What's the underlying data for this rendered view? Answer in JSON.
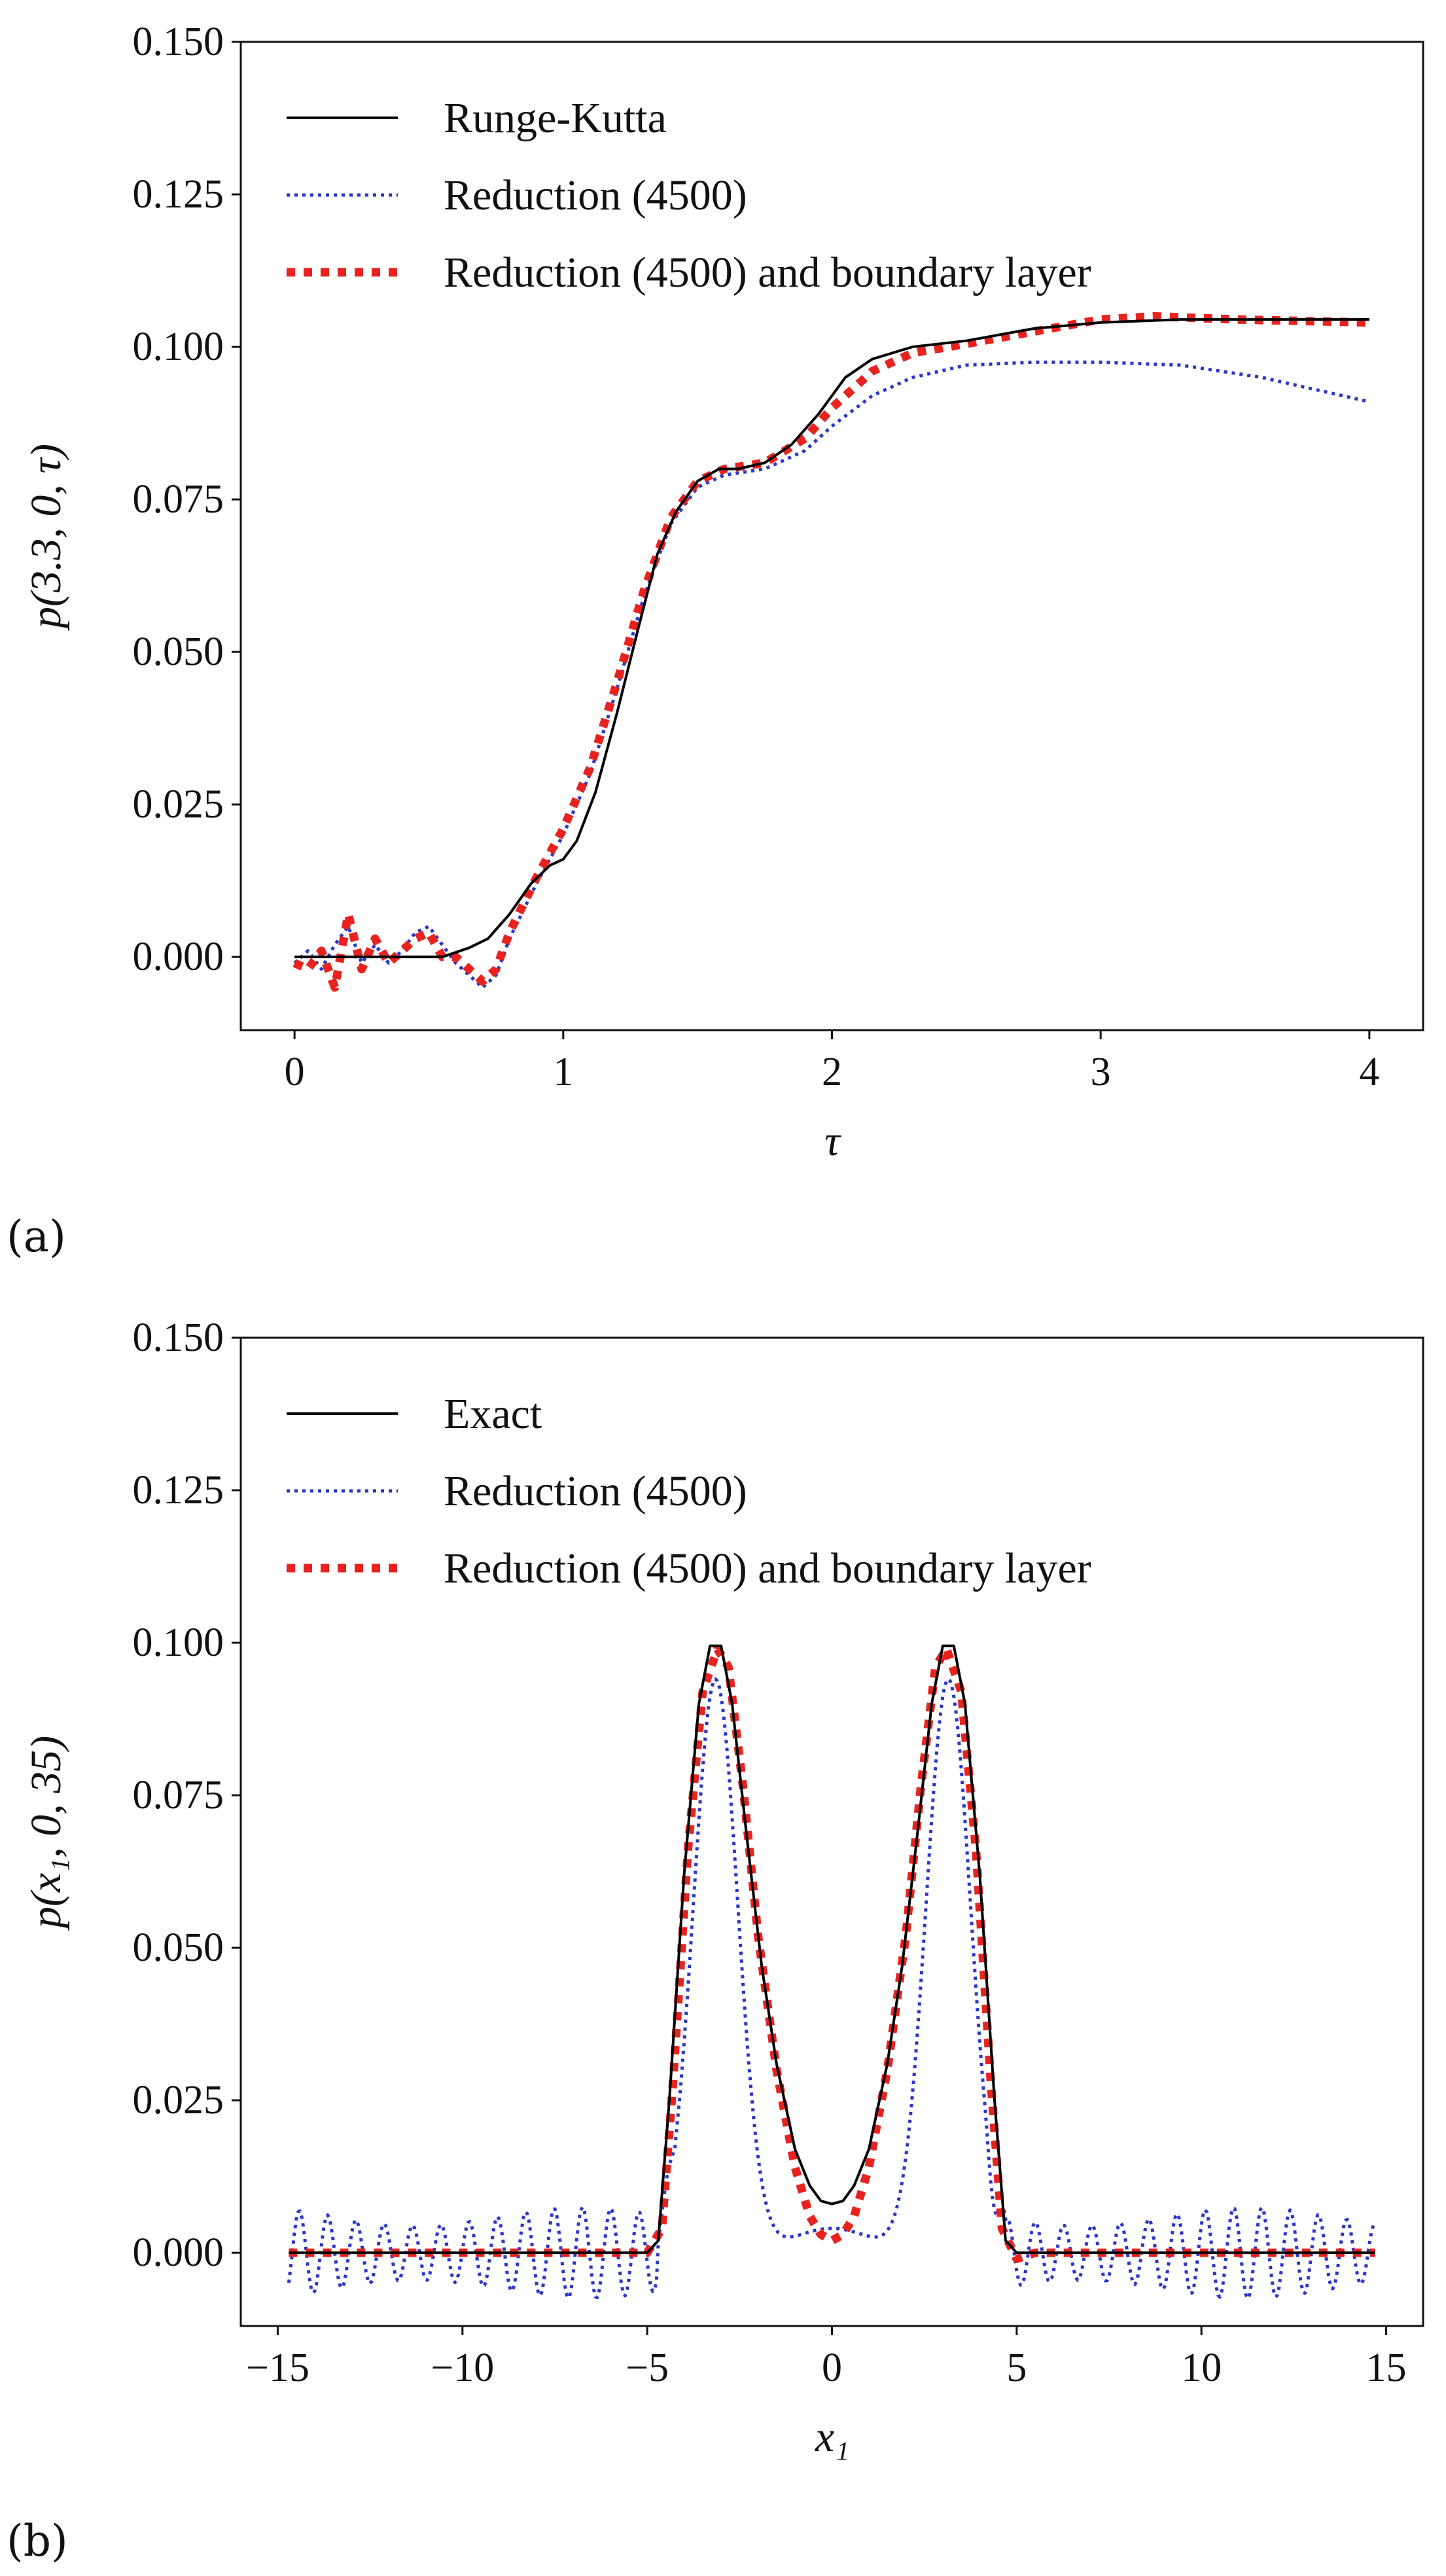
{
  "chart_data": [
    {
      "type": "line",
      "panel_label": "(a)",
      "ylabel": "p(3.3, 0, τ)",
      "xlabel": "τ",
      "xlim": [
        -0.2,
        4.2
      ],
      "ylim": [
        -0.012,
        0.15
      ],
      "xticks": [
        0,
        1,
        2,
        3,
        4
      ],
      "yticks": [
        0.0,
        0.025,
        0.05,
        0.075,
        0.1,
        0.125,
        0.15
      ],
      "xtick_labels": [
        "0",
        "1",
        "2",
        "3",
        "4"
      ],
      "ytick_labels": [
        "0.000",
        "0.025",
        "0.050",
        "0.075",
        "0.100",
        "0.125",
        "0.150"
      ],
      "legend_position": "top-left",
      "series": [
        {
          "name": "Runge-Kutta",
          "color": "#000000",
          "style": "solid",
          "points": [
            [
              0,
              0
            ],
            [
              0.3,
              0
            ],
            [
              0.55,
              0
            ],
            [
              0.65,
              0.0015
            ],
            [
              0.72,
              0.003
            ],
            [
              0.8,
              0.007
            ],
            [
              0.88,
              0.012
            ],
            [
              0.95,
              0.015
            ],
            [
              1.0,
              0.016
            ],
            [
              1.05,
              0.019
            ],
            [
              1.12,
              0.027
            ],
            [
              1.2,
              0.04
            ],
            [
              1.28,
              0.054
            ],
            [
              1.35,
              0.066
            ],
            [
              1.42,
              0.073
            ],
            [
              1.5,
              0.078
            ],
            [
              1.58,
              0.08
            ],
            [
              1.65,
              0.08
            ],
            [
              1.75,
              0.081
            ],
            [
              1.85,
              0.084
            ],
            [
              1.95,
              0.089
            ],
            [
              2.05,
              0.095
            ],
            [
              2.15,
              0.098
            ],
            [
              2.3,
              0.1
            ],
            [
              2.5,
              0.101
            ],
            [
              2.75,
              0.103
            ],
            [
              3.0,
              0.104
            ],
            [
              3.3,
              0.1045
            ],
            [
              3.6,
              0.1045
            ],
            [
              4.0,
              0.1045
            ]
          ]
        },
        {
          "name": "Reduction (4500)",
          "color": "#2b35c8",
          "style": "dotted",
          "points": [
            [
              0,
              -0.001
            ],
            [
              0.05,
              0.001
            ],
            [
              0.1,
              -0.002
            ],
            [
              0.15,
              0.002
            ],
            [
              0.2,
              0.005
            ],
            [
              0.25,
              -0.001
            ],
            [
              0.3,
              0.002
            ],
            [
              0.35,
              -0.001
            ],
            [
              0.4,
              0.001
            ],
            [
              0.45,
              0.004
            ],
            [
              0.5,
              0.005
            ],
            [
              0.55,
              0.002
            ],
            [
              0.6,
              -0.001
            ],
            [
              0.65,
              -0.003
            ],
            [
              0.7,
              -0.005
            ],
            [
              0.75,
              -0.003
            ],
            [
              0.8,
              0.003
            ],
            [
              0.9,
              0.012
            ],
            [
              1.0,
              0.02
            ],
            [
              1.1,
              0.03
            ],
            [
              1.2,
              0.044
            ],
            [
              1.3,
              0.059
            ],
            [
              1.4,
              0.071
            ],
            [
              1.5,
              0.077
            ],
            [
              1.6,
              0.079
            ],
            [
              1.75,
              0.08
            ],
            [
              1.9,
              0.083
            ],
            [
              2.0,
              0.087
            ],
            [
              2.15,
              0.092
            ],
            [
              2.3,
              0.095
            ],
            [
              2.5,
              0.097
            ],
            [
              2.75,
              0.0975
            ],
            [
              3.0,
              0.0975
            ],
            [
              3.3,
              0.097
            ],
            [
              3.6,
              0.095
            ],
            [
              3.8,
              0.093
            ],
            [
              4.0,
              0.091
            ]
          ]
        },
        {
          "name": "Reduction (4500) and boundary layer",
          "color": "#e8231f",
          "style": "dotted-thick",
          "points": [
            [
              0,
              -0.001
            ],
            [
              0.05,
              -0.002
            ],
            [
              0.1,
              0.001
            ],
            [
              0.15,
              -0.005
            ],
            [
              0.2,
              0.007
            ],
            [
              0.25,
              -0.002
            ],
            [
              0.3,
              0.003
            ],
            [
              0.35,
              -0.001
            ],
            [
              0.4,
              0.001
            ],
            [
              0.45,
              0.003
            ],
            [
              0.5,
              0.004
            ],
            [
              0.55,
              0.0
            ],
            [
              0.6,
              0.0
            ],
            [
              0.65,
              -0.002
            ],
            [
              0.7,
              -0.004
            ],
            [
              0.75,
              -0.002
            ],
            [
              0.8,
              0.004
            ],
            [
              0.9,
              0.013
            ],
            [
              1.0,
              0.021
            ],
            [
              1.1,
              0.031
            ],
            [
              1.2,
              0.045
            ],
            [
              1.3,
              0.06
            ],
            [
              1.4,
              0.072
            ],
            [
              1.5,
              0.078
            ],
            [
              1.6,
              0.08
            ],
            [
              1.75,
              0.081
            ],
            [
              1.9,
              0.085
            ],
            [
              2.0,
              0.09
            ],
            [
              2.15,
              0.096
            ],
            [
              2.3,
              0.099
            ],
            [
              2.5,
              0.1005
            ],
            [
              2.75,
              0.1025
            ],
            [
              3.0,
              0.1045
            ],
            [
              3.2,
              0.105
            ],
            [
              3.5,
              0.1045
            ],
            [
              4.0,
              0.104
            ]
          ]
        }
      ]
    },
    {
      "type": "line",
      "panel_label": "(b)",
      "ylabel": "p(x₁, 0, 35)",
      "xlabel": "x₁",
      "xlim": [
        -16.0,
        16.0
      ],
      "ylim": [
        -0.012,
        0.15
      ],
      "xticks": [
        -15,
        -10,
        -5,
        0,
        5,
        10,
        15
      ],
      "yticks": [
        0.0,
        0.025,
        0.05,
        0.075,
        0.1,
        0.125,
        0.15
      ],
      "xtick_labels": [
        "−15",
        "−10",
        "−5",
        "0",
        "5",
        "10",
        "15"
      ],
      "ytick_labels": [
        "0.000",
        "0.025",
        "0.050",
        "0.075",
        "0.100",
        "0.125",
        "0.150"
      ],
      "legend_position": "top-left",
      "series": [
        {
          "name": "Exact",
          "color": "#000000",
          "style": "solid",
          "points": [
            [
              -14.7,
              0
            ],
            [
              -5.0,
              0
            ],
            [
              -4.7,
              0.002
            ],
            [
              -4.4,
              0.025
            ],
            [
              -4.0,
              0.062
            ],
            [
              -3.6,
              0.09
            ],
            [
              -3.3,
              0.0995
            ],
            [
              -3.0,
              0.0995
            ],
            [
              -2.7,
              0.09
            ],
            [
              -2.3,
              0.068
            ],
            [
              -1.9,
              0.047
            ],
            [
              -1.5,
              0.031
            ],
            [
              -1.0,
              0.017
            ],
            [
              -0.6,
              0.011
            ],
            [
              -0.3,
              0.0085
            ],
            [
              0,
              0.008
            ],
            [
              0.3,
              0.0085
            ],
            [
              0.6,
              0.011
            ],
            [
              1.0,
              0.017
            ],
            [
              1.5,
              0.031
            ],
            [
              1.9,
              0.047
            ],
            [
              2.3,
              0.068
            ],
            [
              2.7,
              0.09
            ],
            [
              3.0,
              0.0995
            ],
            [
              3.3,
              0.0995
            ],
            [
              3.6,
              0.09
            ],
            [
              4.0,
              0.062
            ],
            [
              4.4,
              0.025
            ],
            [
              4.7,
              0.002
            ],
            [
              5.0,
              0
            ],
            [
              14.7,
              0
            ]
          ]
        },
        {
          "name": "Reduction (4500)",
          "color": "#2b35c8",
          "style": "dotted",
          "points": "oscillating"
        },
        {
          "name": "Reduction (4500) and boundary layer",
          "color": "#e8231f",
          "style": "dotted-thick",
          "points": [
            [
              -14.7,
              0
            ],
            [
              -5.0,
              0
            ],
            [
              -4.6,
              0.004
            ],
            [
              -4.3,
              0.028
            ],
            [
              -3.9,
              0.066
            ],
            [
              -3.5,
              0.092
            ],
            [
              -3.1,
              0.099
            ],
            [
              -2.8,
              0.096
            ],
            [
              -2.4,
              0.076
            ],
            [
              -2.0,
              0.052
            ],
            [
              -1.5,
              0.03
            ],
            [
              -1.0,
              0.014
            ],
            [
              -0.6,
              0.006
            ],
            [
              -0.3,
              0.003
            ],
            [
              0,
              0.002
            ],
            [
              0.3,
              0.003
            ],
            [
              0.6,
              0.006
            ],
            [
              1.0,
              0.014
            ],
            [
              1.5,
              0.03
            ],
            [
              2.0,
              0.052
            ],
            [
              2.4,
              0.076
            ],
            [
              2.8,
              0.096
            ],
            [
              3.1,
              0.099
            ],
            [
              3.5,
              0.092
            ],
            [
              3.9,
              0.066
            ],
            [
              4.3,
              0.028
            ],
            [
              4.6,
              0.004
            ],
            [
              5.0,
              -0.001
            ],
            [
              5.5,
              0
            ],
            [
              14.7,
              0
            ]
          ]
        }
      ]
    }
  ]
}
